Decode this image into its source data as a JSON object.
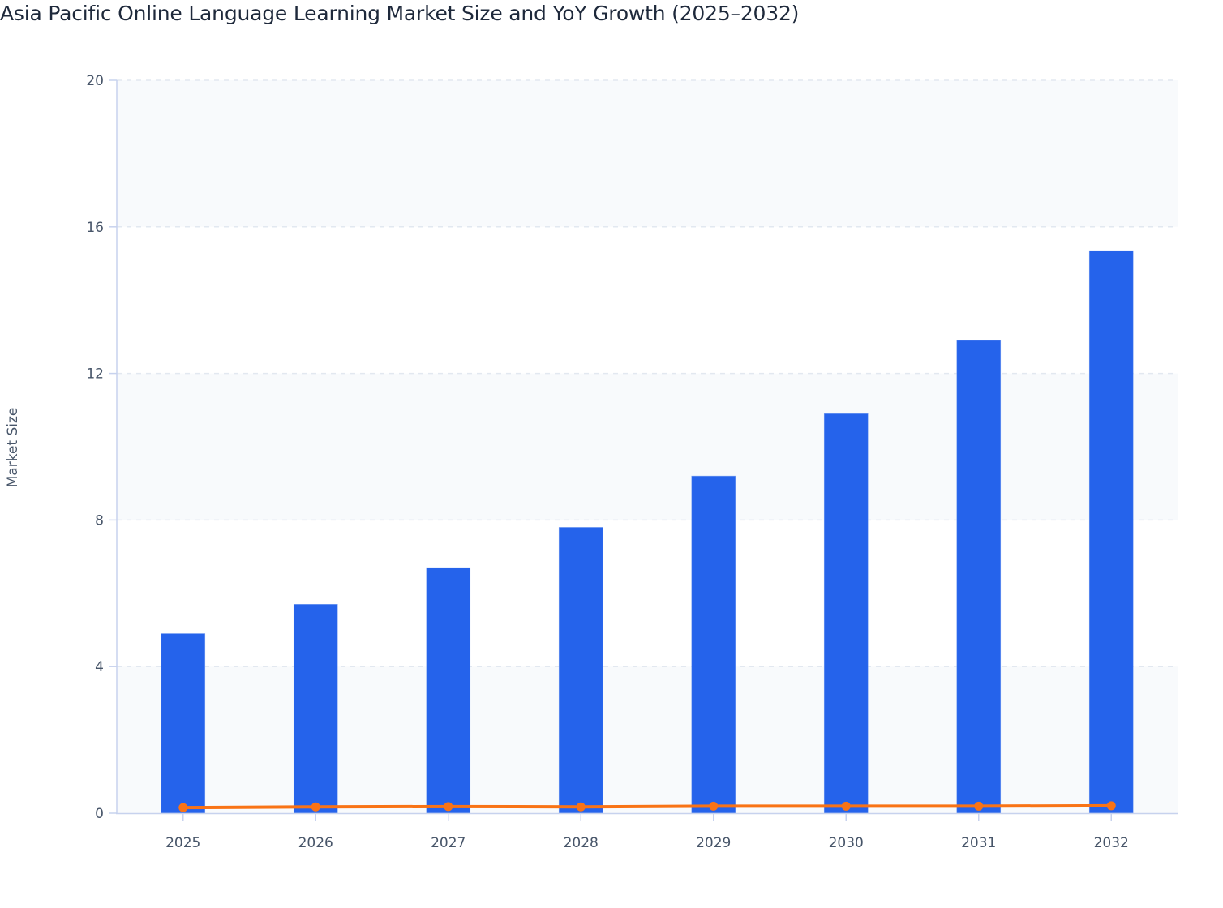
{
  "title": "Asia Pacific Online Language Learning Market Size and YoY Growth (2025–2032)",
  "colors": {
    "bar": "#2563eb",
    "line": "#f97316",
    "band": "#f8fafc",
    "grid": "#e2e8f0",
    "axis": "#c7d2ee",
    "text": "#475569",
    "title": "#1e293b"
  },
  "chart_data": {
    "type": "bar",
    "title": "Asia Pacific Online Language Learning Market Size and YoY Growth (2025–2032)",
    "xlabel": "",
    "ylabel": "Market Size",
    "ylim": [
      0,
      20
    ],
    "yticks": [
      0,
      4,
      8,
      12,
      16,
      20
    ],
    "grid": true,
    "legend": "none",
    "categories": [
      "2025",
      "2026",
      "2027",
      "2028",
      "2029",
      "2030",
      "2031",
      "2032"
    ],
    "series": [
      {
        "name": "Market Size",
        "type": "bar",
        "values": [
          4.9,
          5.7,
          6.7,
          7.8,
          9.2,
          10.9,
          12.9,
          15.35
        ]
      },
      {
        "name": "YoY Growth",
        "type": "line",
        "values": [
          0.14,
          0.16,
          0.17,
          0.16,
          0.18,
          0.18,
          0.18,
          0.19
        ]
      }
    ]
  }
}
